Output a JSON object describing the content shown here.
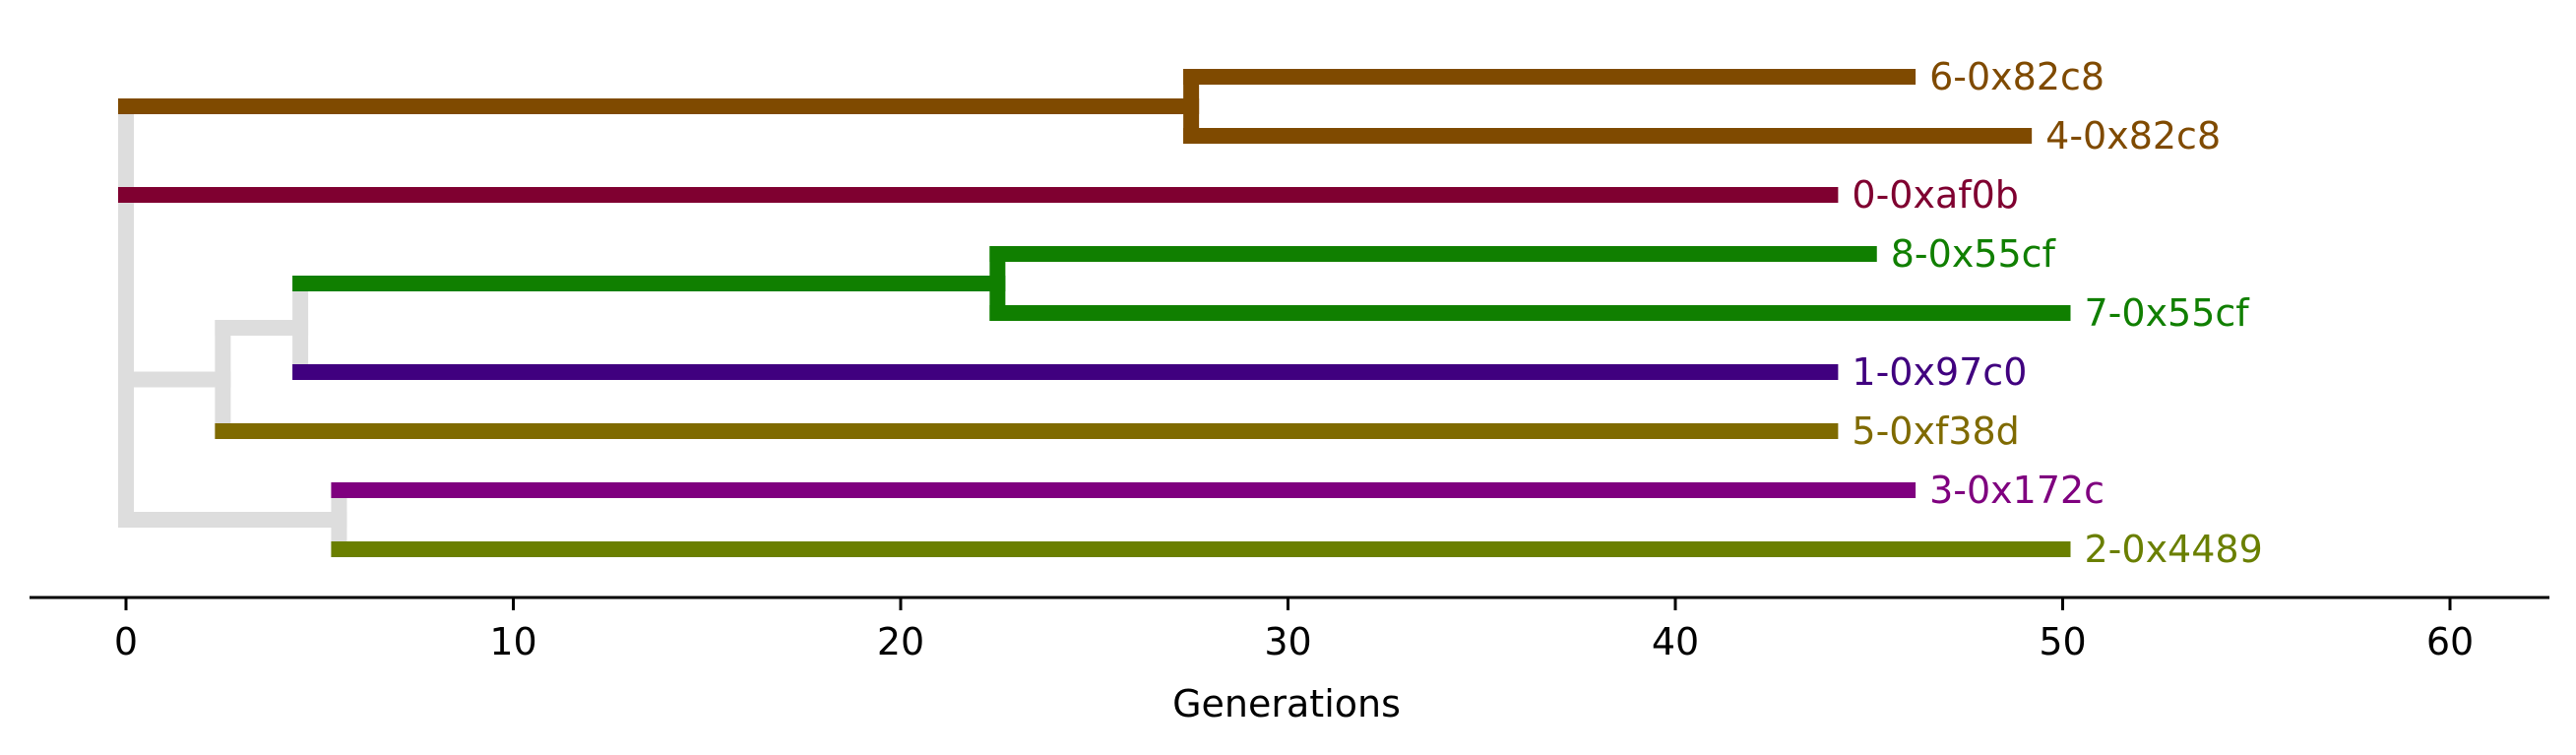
{
  "chart_data": {
    "type": "phylogram",
    "xlabel": "Generations",
    "xlim": [
      -2.5,
      63
    ],
    "xticks": [
      0,
      10,
      20,
      30,
      40,
      50,
      60
    ],
    "tree_color": "#dddddd",
    "leaves": [
      {
        "label": "6-0x82c8",
        "x": 46,
        "color": "#7f4a00"
      },
      {
        "label": "4-0x82c8",
        "x": 49,
        "color": "#7f4a00"
      },
      {
        "label": "0-0xaf0b",
        "x": 44,
        "color": "#7f0030"
      },
      {
        "label": "8-0x55cf",
        "x": 45,
        "color": "#107f00"
      },
      {
        "label": "7-0x55cf",
        "x": 50,
        "color": "#107f00"
      },
      {
        "label": "1-0x97c0",
        "x": 44,
        "color": "#40007f"
      },
      {
        "label": "5-0xf38d",
        "x": 44,
        "color": "#7f6a00"
      },
      {
        "label": "3-0x172c",
        "x": 46,
        "color": "#7f007f"
      },
      {
        "label": "2-0x4489",
        "x": 50,
        "color": "#6a7f00"
      }
    ],
    "internal_nodes": [
      {
        "id": "root",
        "x": 0,
        "color": "#dddddd",
        "children": [
          "A",
          "leaf:0-0xaf0b",
          "B",
          "E"
        ]
      },
      {
        "id": "A",
        "x": 0,
        "color": "#7f4a00",
        "children": [
          "A1"
        ]
      },
      {
        "id": "A1",
        "x": 27.5,
        "color": "#7f4a00",
        "children": [
          "leaf:6-0x82c8",
          "leaf:4-0x82c8"
        ]
      },
      {
        "id": "B",
        "x": 2.5,
        "color": "#dddddd",
        "children": [
          "C",
          "leaf:5-0xf38d"
        ]
      },
      {
        "id": "C",
        "x": 4.5,
        "color": "#dddddd",
        "children": [
          "D",
          "leaf:1-0x97c0"
        ]
      },
      {
        "id": "D",
        "x": 22.5,
        "color": "#107f00",
        "children": [
          "leaf:8-0x55cf",
          "leaf:7-0x55cf"
        ]
      },
      {
        "id": "E",
        "x": 5.5,
        "color": "#dddddd",
        "children": [
          "leaf:3-0x172c",
          "leaf:2-0x4489"
        ]
      }
    ]
  }
}
